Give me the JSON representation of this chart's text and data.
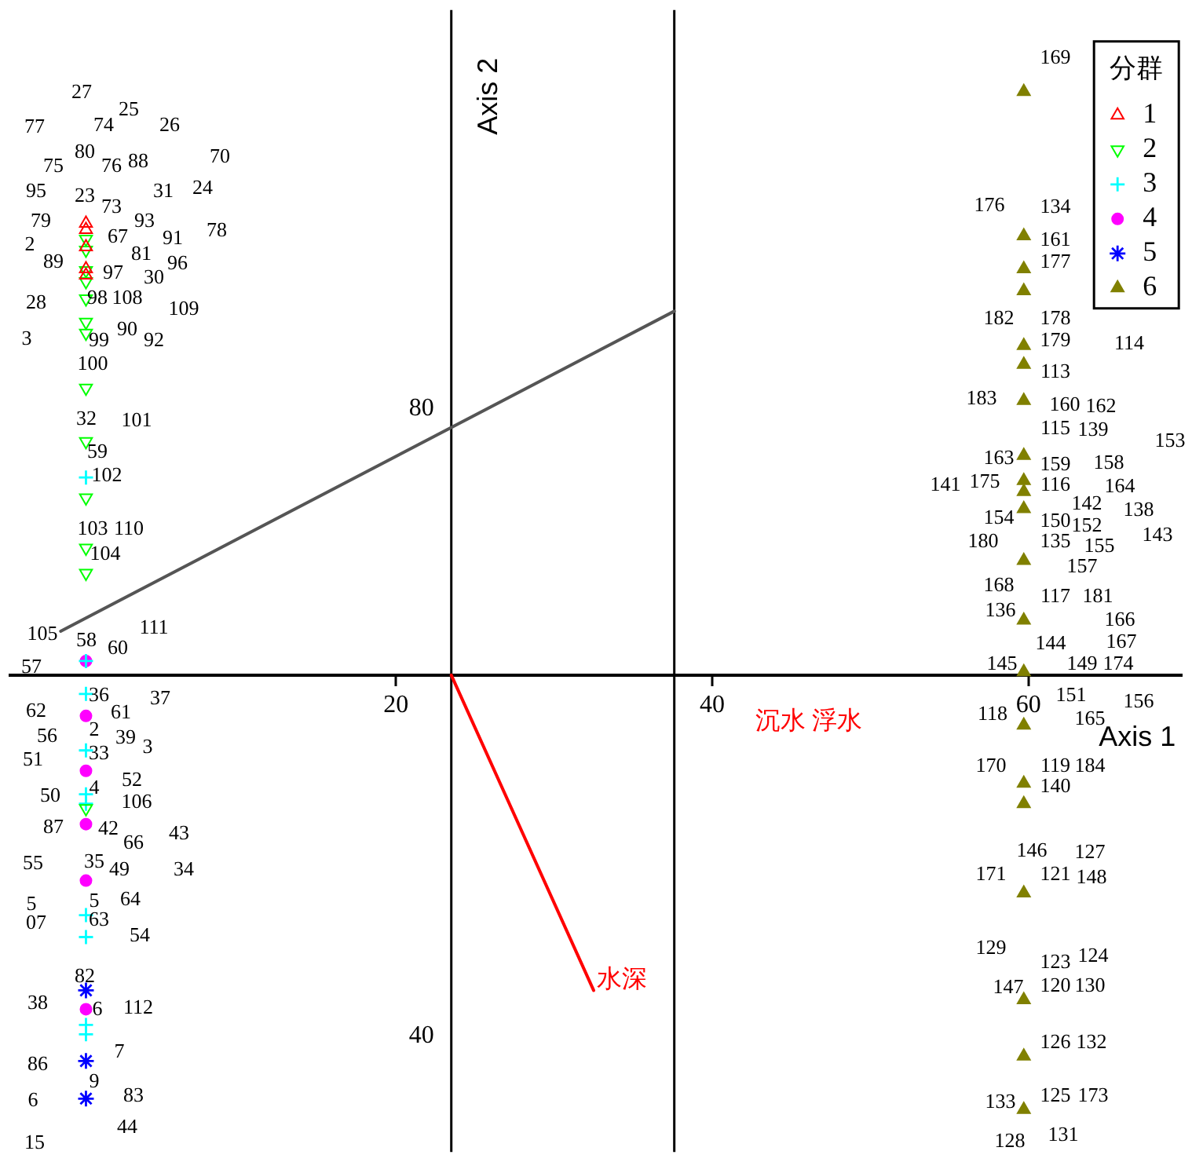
{
  "chart_data": {
    "type": "scatter",
    "xlabel": "Axis 1",
    "ylabel": "Axis 2",
    "legend_title": "分群",
    "legend": "top right",
    "xlim": [
      -4.4,
      69.7
    ],
    "ylim": [
      32.6,
      105.4
    ],
    "xticks": [
      20,
      40,
      60
    ],
    "yticks": [
      40,
      80
    ],
    "ref_lines": [
      {
        "axis": "x",
        "value": 23.5,
        "color": "#000000"
      },
      {
        "axis": "x",
        "value": 37.6,
        "color": "#000000"
      }
    ],
    "series": [
      {
        "name": "1",
        "color": "#ff0000",
        "marker": "triangle-open",
        "x": [
          0.4,
          0.4,
          0.4,
          0.4,
          0.4
        ],
        "values": [
          91.8,
          91.4,
          90.3,
          88.9,
          88.5
        ]
      },
      {
        "name": "2",
        "color": "#00ff00",
        "marker": "triangle-down-open",
        "x": [
          0.4,
          0.4,
          0.4,
          0.4,
          0.4,
          0.4,
          0.4,
          0.4,
          0.4,
          0.4,
          0.4,
          0.4,
          0.4
        ],
        "values": [
          90.8,
          90.1,
          88.8,
          88.1,
          87.0,
          85.5,
          84.8,
          81.3,
          77.9,
          74.3,
          71.1,
          69.5,
          54.5
        ]
      },
      {
        "name": "3",
        "color": "#00ffff",
        "marker": "cross",
        "x": [
          0.4,
          0.4,
          0.4,
          0.4,
          0.4,
          0.4,
          0.4,
          0.4,
          0.4,
          0.4
        ],
        "values": [
          75.6,
          63.9,
          61.8,
          58.2,
          55.4,
          54.8,
          47.7,
          46.3,
          40.7,
          40.1
        ]
      },
      {
        "name": "4",
        "color": "#ff00ff",
        "marker": "circle",
        "x": [
          0.4,
          0.4,
          0.4,
          0.4,
          0.4,
          0.4
        ],
        "values": [
          63.9,
          60.4,
          56.9,
          53.5,
          49.9,
          41.7
        ]
      },
      {
        "name": "5",
        "color": "#0000ff",
        "x": [
          0.4,
          0.4,
          0.4
        ],
        "values": [
          42.9,
          38.4,
          36.0
        ]
      },
      {
        "name": "6",
        "color": "#808000",
        "marker": "triangle",
        "x": [
          59.7,
          59.7,
          59.7,
          59.7,
          59.7,
          59.7,
          59.7,
          59.7,
          59.7,
          59.7,
          59.7,
          59.7,
          59.7,
          59.7,
          59.7,
          59.7,
          59.7,
          59.7,
          59.7,
          59.7,
          59.7
        ],
        "values": [
          100.2,
          91.0,
          88.9,
          87.5,
          84.0,
          82.8,
          80.5,
          77.0,
          75.4,
          74.7,
          73.6,
          70.3,
          66.5,
          63.2,
          59.8,
          56.1,
          54.8,
          49.1,
          42.3,
          38.7,
          35.3
        ]
      },
      {
        "name": "水深",
        "type": "line",
        "color": "#ff0000",
        "x": [
          23.5,
          32.5
        ],
        "values": [
          63.0,
          42.9
        ]
      },
      {
        "type": "line",
        "color": "#555555",
        "x": [
          -1.2,
          37.6
        ],
        "values": [
          65.8,
          86.2
        ]
      }
    ],
    "annotations": [
      "沉水 浮水",
      "27",
      "25",
      "74",
      "26",
      "77",
      "80",
      "70",
      "75",
      "76",
      "88",
      "95",
      "23",
      "31",
      "24",
      "73",
      "79",
      "93",
      "78",
      "67",
      "91",
      "2",
      "81",
      "89",
      "96",
      "97",
      "30",
      "28",
      "98",
      "108",
      "109",
      "3",
      "90",
      "99",
      "92",
      "100",
      "32",
      "101",
      "59",
      "102",
      "103",
      "110",
      "104",
      "105",
      "58",
      "111",
      "60",
      "57",
      "36",
      "37",
      "62",
      "61",
      "56",
      "2",
      "39",
      "3",
      "51",
      "33",
      "52",
      "50",
      "4",
      "106",
      "87",
      "42",
      "66",
      "43",
      "55",
      "35",
      "49",
      "34",
      "5",
      "5",
      "64",
      "07",
      "63",
      "54",
      "82",
      "38",
      "6",
      "112",
      "7",
      "86",
      "9",
      "6",
      "83",
      "44",
      "15",
      "169",
      "176",
      "134",
      "161",
      "177",
      "182",
      "178",
      "179",
      "114",
      "113",
      "183",
      "160",
      "162",
      "139",
      "115",
      "153",
      "163",
      "159",
      "158",
      "141",
      "175",
      "116",
      "164",
      "142",
      "154",
      "150",
      "152",
      "138",
      "143",
      "155",
      "180",
      "135",
      "157",
      "168",
      "117",
      "181",
      "136",
      "166",
      "144",
      "167",
      "145",
      "149",
      "174",
      "151",
      "156",
      "118",
      "165",
      "170",
      "119",
      "184",
      "140",
      "146",
      "127",
      "171",
      "121",
      "148",
      "129",
      "124",
      "123",
      "147",
      "120",
      "130",
      "126",
      "132",
      "133",
      "125",
      "173",
      "128",
      "131"
    ]
  }
}
